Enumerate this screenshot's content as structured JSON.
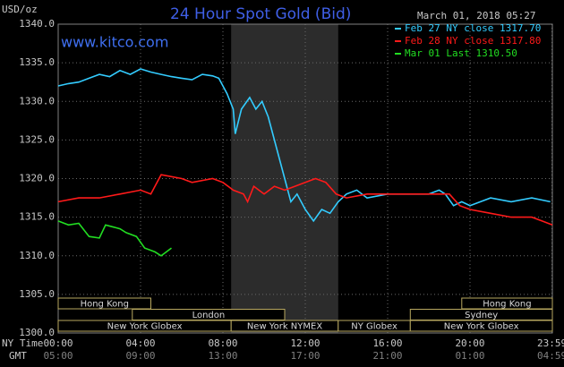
{
  "chart_data": {
    "type": "line",
    "title": "24 Hour Spot Gold (Bid)",
    "site": "www.kitco.com",
    "timestamp": "March 01, 2018 05:27",
    "y_label": "USD/oz",
    "x_label": "NY Time",
    "x2_label": "GMT",
    "xlim": [
      0,
      24
    ],
    "ylim": [
      1300,
      1340
    ],
    "grid": true,
    "shaded": [
      8.4,
      13.6
    ],
    "xticks": [
      {
        "value": 0,
        "label": "00:00"
      },
      {
        "value": 4,
        "label": "04:00"
      },
      {
        "value": 8,
        "label": "08:00"
      },
      {
        "value": 12,
        "label": "12:00"
      },
      {
        "value": 16,
        "label": "16:00"
      },
      {
        "value": 20,
        "label": "20:00"
      },
      {
        "value": 23.98,
        "label": "23:59"
      }
    ],
    "x2ticks": [
      {
        "value": 0,
        "label": "05:00"
      },
      {
        "value": 4,
        "label": "09:00"
      },
      {
        "value": 8,
        "label": "13:00"
      },
      {
        "value": 12,
        "label": "17:00"
      },
      {
        "value": 16,
        "label": "21:00"
      },
      {
        "value": 20,
        "label": "01:00"
      },
      {
        "value": 23.98,
        "label": "04:59"
      }
    ],
    "yticks": [
      {
        "value": 1300,
        "label": "1300.0"
      },
      {
        "value": 1305,
        "label": "1305.0"
      },
      {
        "value": 1310,
        "label": "1310.0"
      },
      {
        "value": 1315,
        "label": "1315.0"
      },
      {
        "value": 1320,
        "label": "1320.0"
      },
      {
        "value": 1325,
        "label": "1325.0"
      },
      {
        "value": 1330,
        "label": "1330.0"
      },
      {
        "value": 1335,
        "label": "1335.0"
      },
      {
        "value": 1340,
        "label": "1340.0"
      }
    ],
    "session_rows": [
      [
        {
          "name": "Hong Kong",
          "start": 0,
          "end": 4.5
        },
        {
          "name": "Hong Kong",
          "start": 19.6,
          "end": 24
        }
      ],
      [
        {
          "name": "London",
          "start": 3.6,
          "end": 11.0
        },
        {
          "name": "Sydney",
          "start": 17.1,
          "end": 24
        }
      ],
      [
        {
          "name": "New York Globex",
          "start": 0,
          "end": 8.4
        },
        {
          "name": "New York NYMEX",
          "start": 8.4,
          "end": 13.6
        },
        {
          "name": "NY Globex",
          "start": 13.6,
          "end": 17.1
        },
        {
          "name": "New York Globex",
          "start": 17.1,
          "end": 24
        }
      ]
    ],
    "series": [
      {
        "name": "Feb 27 NY close 1317.70",
        "color": "#33ccff",
        "x": [
          0,
          0.5,
          1,
          1.5,
          2,
          2.5,
          3,
          3.5,
          4,
          4.5,
          5,
          5.5,
          6,
          6.5,
          7,
          7.5,
          7.8,
          8.2,
          8.5,
          8.6,
          8.9,
          9.3,
          9.6,
          9.9,
          10.2,
          10.6,
          11.0,
          11.3,
          11.6,
          12.0,
          12.4,
          12.8,
          13.2,
          13.6,
          14.0,
          14.5,
          15.0,
          16.0,
          17.0,
          18.0,
          18.5,
          18.8,
          19.2,
          19.6,
          20.0,
          21.0,
          22.0,
          23.0,
          23.9
        ],
        "values": [
          1332,
          1332.3,
          1332.5,
          1333,
          1333.5,
          1333.2,
          1334,
          1333.5,
          1334.2,
          1333.8,
          1333.5,
          1333.2,
          1333,
          1332.8,
          1333.5,
          1333.3,
          1333,
          1331,
          1329,
          1325.8,
          1329,
          1330.5,
          1329,
          1330,
          1328,
          1324,
          1320,
          1317,
          1318,
          1316,
          1314.5,
          1316,
          1315.5,
          1317,
          1318,
          1318.5,
          1317.5,
          1318,
          1318,
          1318,
          1318.5,
          1318,
          1316.5,
          1317,
          1316.5,
          1317.5,
          1317,
          1317.5,
          1317
        ]
      },
      {
        "name": "Feb 28 NY close 1317.80",
        "color": "#ff1a1a",
        "x": [
          0,
          1,
          2,
          3,
          4,
          4.5,
          5,
          6,
          6.5,
          7.5,
          8,
          8.5,
          9,
          9.2,
          9.5,
          10,
          10.5,
          11,
          11.5,
          12,
          12.5,
          13,
          13.5,
          14,
          15,
          16,
          17,
          18,
          19,
          19.5,
          20,
          21,
          22,
          23,
          23.5,
          24
        ],
        "values": [
          1317,
          1317.5,
          1317.5,
          1318,
          1318.5,
          1318,
          1320.5,
          1320,
          1319.5,
          1320,
          1319.5,
          1318.5,
          1318,
          1317,
          1319,
          1318,
          1319,
          1318.5,
          1319,
          1319.5,
          1320,
          1319.5,
          1318,
          1317.5,
          1318,
          1318,
          1318,
          1318,
          1318,
          1316.5,
          1316,
          1315.5,
          1315,
          1315,
          1314.5,
          1314
        ]
      },
      {
        "name": "Mar 01 Last 1310.50",
        "color": "#22dd22",
        "x": [
          0,
          0.5,
          1,
          1.5,
          2,
          2.3,
          3,
          3.3,
          3.8,
          4.2,
          4.7,
          5,
          5.5
        ],
        "values": [
          1314.5,
          1314,
          1314.2,
          1312.5,
          1312.3,
          1314,
          1313.5,
          1313,
          1312.5,
          1311,
          1310.5,
          1310,
          1311
        ]
      }
    ]
  }
}
